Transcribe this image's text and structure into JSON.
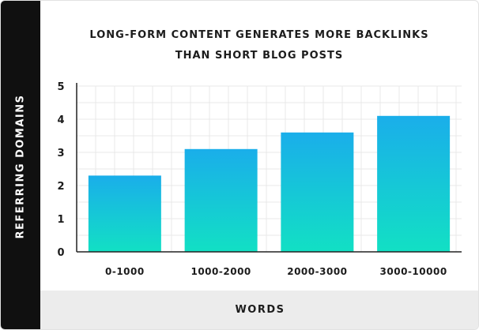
{
  "chart_data": {
    "type": "bar",
    "title_line1": "LONG-FORM CONTENT GENERATES MORE BACKLINKS",
    "title_line2": "THAN SHORT BLOG POSTS",
    "xlabel": "WORDS",
    "ylabel": "REFERRING DOMAINS",
    "categories": [
      "0-1000",
      "1000-2000",
      "2000-3000",
      "3000-10000"
    ],
    "values": [
      2.3,
      3.1,
      3.6,
      4.1
    ],
    "ylim": [
      0,
      5
    ],
    "yticks": [
      "0",
      "1",
      "2",
      "3",
      "4",
      "5"
    ],
    "grid": true,
    "colors": {
      "bar_top": "#1aaeea",
      "bar_bottom": "#12e0c4",
      "grid": "#e8e8e8",
      "axis": "#222222"
    }
  }
}
